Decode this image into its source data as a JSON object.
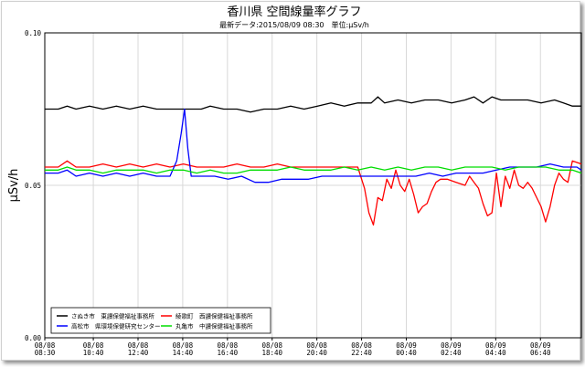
{
  "chart_data": {
    "type": "line",
    "title": "香川県 空間線量率グラフ",
    "subtitle": "最新データ:2015/08/09 08:30　単位:μSv/h",
    "ylabel": "μSv/h",
    "xlabel": "",
    "ylim": [
      0.0,
      0.1
    ],
    "yticks": [
      {
        "value": 0.0,
        "label": "0.00"
      },
      {
        "value": 0.05,
        "label": "0.05"
      },
      {
        "value": 0.1,
        "label": "0.10"
      }
    ],
    "xlim": [
      0,
      24
    ],
    "xticks": [
      {
        "value": 0,
        "date": "08/08",
        "time": "08:30"
      },
      {
        "value": 2.17,
        "date": "08/08",
        "time": "10:40"
      },
      {
        "value": 4.17,
        "date": "08/08",
        "time": "12:40"
      },
      {
        "value": 6.17,
        "date": "08/08",
        "time": "14:40"
      },
      {
        "value": 8.17,
        "date": "08/08",
        "time": "16:40"
      },
      {
        "value": 10.17,
        "date": "08/08",
        "time": "18:40"
      },
      {
        "value": 12.17,
        "date": "08/08",
        "time": "20:40"
      },
      {
        "value": 14.17,
        "date": "08/08",
        "time": "22:40"
      },
      {
        "value": 16.17,
        "date": "08/09",
        "time": "00:40"
      },
      {
        "value": 18.17,
        "date": "08/09",
        "time": "02:40"
      },
      {
        "value": 20.17,
        "date": "08/09",
        "time": "04:40"
      },
      {
        "value": 22.17,
        "date": "08/09",
        "time": "06:40"
      }
    ],
    "grid": true,
    "legend_position": "bottom-left",
    "series": [
      {
        "name": "さぬき市　東讃保健福祉事務所",
        "color": "#000000",
        "points": [
          [
            0,
            0.075
          ],
          [
            0.6,
            0.075
          ],
          [
            1.0,
            0.076
          ],
          [
            1.4,
            0.075
          ],
          [
            2.0,
            0.076
          ],
          [
            2.6,
            0.075
          ],
          [
            3.2,
            0.076
          ],
          [
            3.8,
            0.075
          ],
          [
            4.4,
            0.076
          ],
          [
            5.0,
            0.075
          ],
          [
            5.6,
            0.075
          ],
          [
            6.0,
            0.075
          ],
          [
            6.4,
            0.075
          ],
          [
            7.0,
            0.075
          ],
          [
            7.4,
            0.076
          ],
          [
            8.0,
            0.075
          ],
          [
            8.6,
            0.075
          ],
          [
            9.2,
            0.074
          ],
          [
            9.8,
            0.075
          ],
          [
            10.4,
            0.075
          ],
          [
            11.0,
            0.076
          ],
          [
            11.6,
            0.075
          ],
          [
            12.2,
            0.076
          ],
          [
            12.8,
            0.077
          ],
          [
            13.4,
            0.076
          ],
          [
            14.0,
            0.077
          ],
          [
            14.6,
            0.077
          ],
          [
            14.9,
            0.079
          ],
          [
            15.2,
            0.077
          ],
          [
            15.8,
            0.078
          ],
          [
            16.4,
            0.077
          ],
          [
            17.0,
            0.078
          ],
          [
            17.6,
            0.078
          ],
          [
            18.2,
            0.077
          ],
          [
            18.8,
            0.078
          ],
          [
            19.2,
            0.079
          ],
          [
            19.6,
            0.077
          ],
          [
            20.0,
            0.079
          ],
          [
            20.4,
            0.078
          ],
          [
            21.0,
            0.078
          ],
          [
            21.6,
            0.078
          ],
          [
            22.2,
            0.077
          ],
          [
            22.8,
            0.078
          ],
          [
            23.2,
            0.077
          ],
          [
            23.6,
            0.076
          ],
          [
            24.0,
            0.076
          ]
        ]
      },
      {
        "name": "綾歌町　西讃保健福祉事務所",
        "color": "#ff0000",
        "points": [
          [
            0,
            0.056
          ],
          [
            0.6,
            0.056
          ],
          [
            1.0,
            0.058
          ],
          [
            1.4,
            0.056
          ],
          [
            2.0,
            0.056
          ],
          [
            2.6,
            0.057
          ],
          [
            3.2,
            0.056
          ],
          [
            3.8,
            0.057
          ],
          [
            4.4,
            0.056
          ],
          [
            5.0,
            0.057
          ],
          [
            5.6,
            0.056
          ],
          [
            6.2,
            0.057
          ],
          [
            6.8,
            0.056
          ],
          [
            7.4,
            0.056
          ],
          [
            8.0,
            0.056
          ],
          [
            8.6,
            0.057
          ],
          [
            9.2,
            0.056
          ],
          [
            9.8,
            0.056
          ],
          [
            10.4,
            0.057
          ],
          [
            11.0,
            0.056
          ],
          [
            11.6,
            0.056
          ],
          [
            12.2,
            0.056
          ],
          [
            12.8,
            0.056
          ],
          [
            13.4,
            0.056
          ],
          [
            14.0,
            0.056
          ],
          [
            14.3,
            0.049
          ],
          [
            14.5,
            0.041
          ],
          [
            14.7,
            0.037
          ],
          [
            14.9,
            0.046
          ],
          [
            15.1,
            0.045
          ],
          [
            15.3,
            0.052
          ],
          [
            15.5,
            0.049
          ],
          [
            15.7,
            0.055
          ],
          [
            15.9,
            0.05
          ],
          [
            16.1,
            0.048
          ],
          [
            16.3,
            0.052
          ],
          [
            16.5,
            0.047
          ],
          [
            16.7,
            0.041
          ],
          [
            16.9,
            0.043
          ],
          [
            17.1,
            0.044
          ],
          [
            17.3,
            0.048
          ],
          [
            17.5,
            0.051
          ],
          [
            17.7,
            0.052
          ],
          [
            18.0,
            0.052
          ],
          [
            18.4,
            0.051
          ],
          [
            18.8,
            0.05
          ],
          [
            19.0,
            0.053
          ],
          [
            19.2,
            0.051
          ],
          [
            19.4,
            0.049
          ],
          [
            19.6,
            0.044
          ],
          [
            19.8,
            0.04
          ],
          [
            20.0,
            0.041
          ],
          [
            20.2,
            0.054
          ],
          [
            20.4,
            0.043
          ],
          [
            20.6,
            0.053
          ],
          [
            20.8,
            0.049
          ],
          [
            21.0,
            0.055
          ],
          [
            21.2,
            0.05
          ],
          [
            21.4,
            0.049
          ],
          [
            21.6,
            0.051
          ],
          [
            21.8,
            0.049
          ],
          [
            22.0,
            0.046
          ],
          [
            22.2,
            0.043
          ],
          [
            22.4,
            0.038
          ],
          [
            22.6,
            0.043
          ],
          [
            22.8,
            0.05
          ],
          [
            23.0,
            0.054
          ],
          [
            23.2,
            0.052
          ],
          [
            23.4,
            0.051
          ],
          [
            23.6,
            0.058
          ],
          [
            24.0,
            0.057
          ]
        ]
      },
      {
        "name": "高松市　県環境保健研究センター",
        "color": "#0000ff",
        "points": [
          [
            0,
            0.054
          ],
          [
            0.6,
            0.054
          ],
          [
            1.0,
            0.055
          ],
          [
            1.4,
            0.053
          ],
          [
            2.0,
            0.054
          ],
          [
            2.6,
            0.053
          ],
          [
            3.2,
            0.054
          ],
          [
            3.8,
            0.053
          ],
          [
            4.4,
            0.054
          ],
          [
            5.0,
            0.053
          ],
          [
            5.6,
            0.053
          ],
          [
            5.9,
            0.058
          ],
          [
            6.1,
            0.067
          ],
          [
            6.25,
            0.075
          ],
          [
            6.4,
            0.062
          ],
          [
            6.55,
            0.053
          ],
          [
            7.0,
            0.053
          ],
          [
            7.6,
            0.053
          ],
          [
            8.2,
            0.052
          ],
          [
            8.8,
            0.053
          ],
          [
            9.4,
            0.051
          ],
          [
            10.0,
            0.051
          ],
          [
            10.6,
            0.052
          ],
          [
            11.2,
            0.052
          ],
          [
            11.8,
            0.052
          ],
          [
            12.4,
            0.053
          ],
          [
            13.0,
            0.053
          ],
          [
            13.6,
            0.053
          ],
          [
            14.2,
            0.053
          ],
          [
            14.8,
            0.053
          ],
          [
            15.4,
            0.053
          ],
          [
            16.0,
            0.053
          ],
          [
            16.6,
            0.053
          ],
          [
            17.2,
            0.054
          ],
          [
            17.8,
            0.053
          ],
          [
            18.4,
            0.054
          ],
          [
            19.0,
            0.054
          ],
          [
            19.6,
            0.054
          ],
          [
            20.2,
            0.055
          ],
          [
            20.8,
            0.056
          ],
          [
            21.4,
            0.056
          ],
          [
            22.0,
            0.056
          ],
          [
            22.6,
            0.057
          ],
          [
            23.2,
            0.056
          ],
          [
            23.8,
            0.056
          ],
          [
            24.0,
            0.055
          ]
        ]
      },
      {
        "name": "丸亀市　中讃保健福祉事務所",
        "color": "#00dd00",
        "points": [
          [
            0,
            0.055
          ],
          [
            0.6,
            0.055
          ],
          [
            1.0,
            0.056
          ],
          [
            1.4,
            0.055
          ],
          [
            2.0,
            0.055
          ],
          [
            2.6,
            0.054
          ],
          [
            3.2,
            0.055
          ],
          [
            3.8,
            0.055
          ],
          [
            4.4,
            0.055
          ],
          [
            5.0,
            0.054
          ],
          [
            5.6,
            0.055
          ],
          [
            6.2,
            0.055
          ],
          [
            6.8,
            0.054
          ],
          [
            7.4,
            0.055
          ],
          [
            8.0,
            0.054
          ],
          [
            8.6,
            0.054
          ],
          [
            9.2,
            0.055
          ],
          [
            9.8,
            0.055
          ],
          [
            10.4,
            0.055
          ],
          [
            11.0,
            0.056
          ],
          [
            11.6,
            0.055
          ],
          [
            12.2,
            0.055
          ],
          [
            12.8,
            0.055
          ],
          [
            13.4,
            0.056
          ],
          [
            14.0,
            0.055
          ],
          [
            14.6,
            0.056
          ],
          [
            15.2,
            0.055
          ],
          [
            15.8,
            0.056
          ],
          [
            16.4,
            0.055
          ],
          [
            17.0,
            0.056
          ],
          [
            17.6,
            0.056
          ],
          [
            18.2,
            0.055
          ],
          [
            18.8,
            0.056
          ],
          [
            19.4,
            0.056
          ],
          [
            20.0,
            0.056
          ],
          [
            20.6,
            0.055
          ],
          [
            21.2,
            0.056
          ],
          [
            21.8,
            0.056
          ],
          [
            22.4,
            0.056
          ],
          [
            23.0,
            0.055
          ],
          [
            23.6,
            0.055
          ],
          [
            24.0,
            0.054
          ]
        ]
      }
    ]
  }
}
